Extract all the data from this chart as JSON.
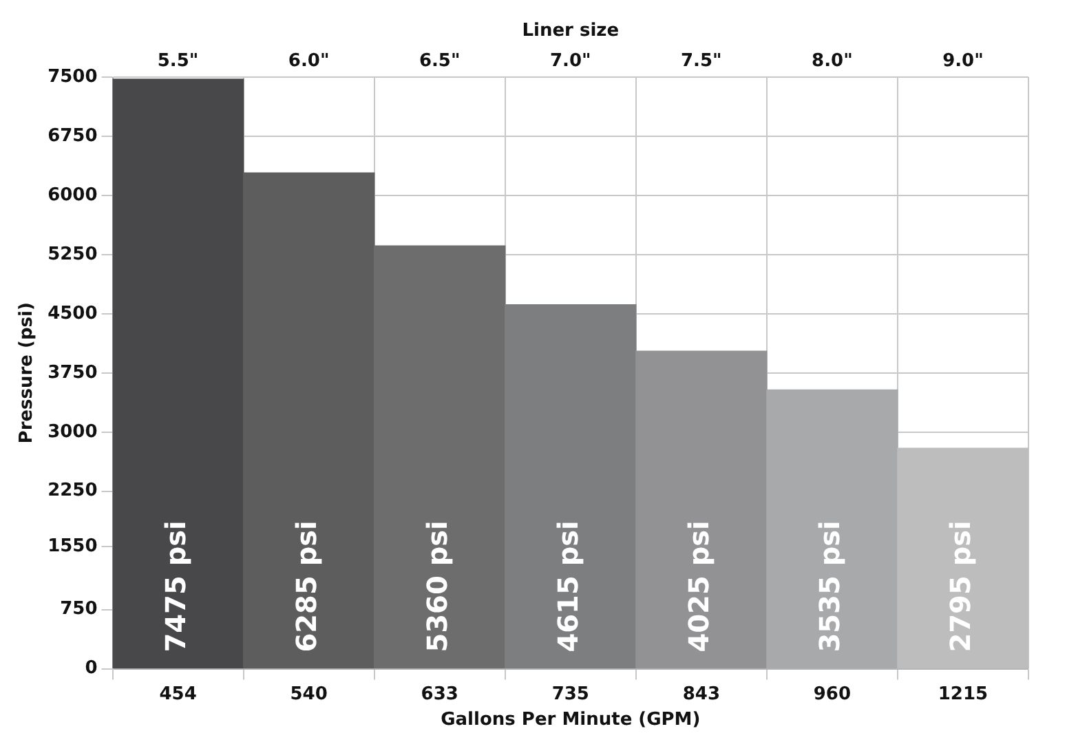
{
  "chart_data": {
    "type": "bar",
    "xlabel": "Gallons Per Minute (GPM)",
    "ylabel": "Pressure (psi)",
    "x2label": "Liner size",
    "categories": [
      "454",
      "540",
      "633",
      "735",
      "843",
      "960",
      "1215"
    ],
    "values": [
      7475,
      6285,
      5360,
      4615,
      4025,
      3535,
      2795
    ],
    "colors": [
      "#48484a",
      "#5c5d5c",
      "#6d6d6e",
      "#7d7e80",
      "#929294",
      "#a8a9ab",
      "#bdbdbe"
    ],
    "value_labels": [
      "7475 psi",
      "6285 psi",
      "5360 psi",
      "4615 psi",
      "4025 psi",
      "3535 psi",
      "2795 psi"
    ],
    "ylim": [
      0,
      7500
    ],
    "yticks": [
      0,
      750,
      1550,
      2250,
      3000,
      3750,
      4500,
      5250,
      6000,
      6750,
      7500
    ],
    "annotations": [
      "5.5\"",
      "6.0\"",
      "6.5\"",
      "7.0\"",
      "7.5\"",
      "8.0\"",
      "9.0\""
    ],
    "grid": true
  }
}
